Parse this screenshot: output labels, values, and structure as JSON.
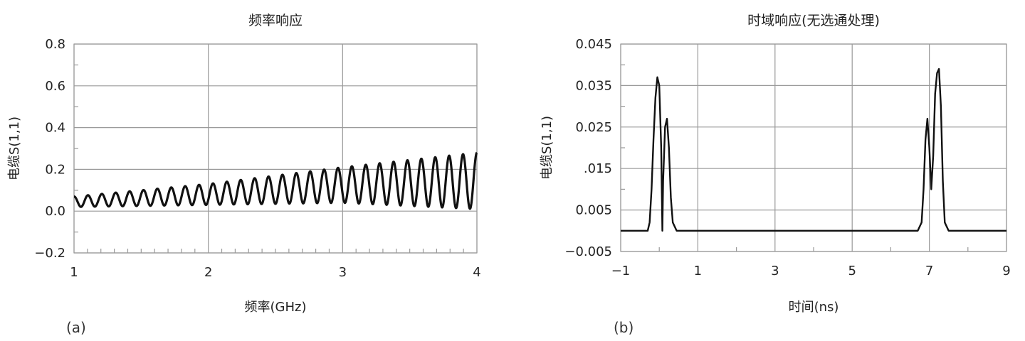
{
  "chart_data": [
    {
      "type": "line",
      "panel_label": "(a)",
      "title": "频率响应",
      "xlabel": "频率(GHz)",
      "ylabel": "电缆S(1,1)",
      "xlim": [
        1,
        4
      ],
      "ylim": [
        -0.2,
        0.8
      ],
      "xticks": [
        1,
        2,
        3,
        4
      ],
      "xtick_labels": [
        "1",
        "2",
        "3",
        "4"
      ],
      "yticks": [
        -0.2,
        0.0,
        0.2,
        0.4,
        0.6,
        0.8
      ],
      "ytick_labels": [
        "−0.2",
        "0.0",
        "0.2",
        "0.4",
        "0.6",
        "0.8"
      ],
      "minor_ticks_x": 10,
      "minor_ticks_y": 2,
      "grid": true,
      "series": [
        {
          "style": "rippled",
          "x_start": 1.0,
          "x_end": 4.0,
          "ripple_count": 29,
          "upper_envelope": [
            [
              1.0,
              0.07
            ],
            [
              2.0,
              0.13
            ],
            [
              3.0,
              0.21
            ],
            [
              4.0,
              0.28
            ]
          ],
          "lower_envelope": [
            [
              1.0,
              0.02
            ],
            [
              2.0,
              0.03
            ],
            [
              3.0,
              0.04
            ],
            [
              4.0,
              0.01
            ]
          ]
        }
      ]
    },
    {
      "type": "line",
      "panel_label": "(b)",
      "title": "时域响应(无选通处理)",
      "xlabel": "时间(ns)",
      "ylabel": "电缆S(1,1)",
      "xlim": [
        -1,
        9
      ],
      "ylim": [
        -0.005,
        0.045
      ],
      "xticks": [
        -1,
        1,
        3,
        5,
        7,
        9
      ],
      "xtick_labels": [
        "−1",
        "1",
        "3",
        "5",
        "7",
        "9"
      ],
      "yticks": [
        -0.005,
        0.005,
        0.015,
        0.025,
        0.035,
        0.045
      ],
      "ytick_labels": [
        "−0.005",
        "0.005",
        ".015",
        "0.025",
        "0.035",
        "0.045"
      ],
      "minor_ticks_x": 2,
      "minor_ticks_y": 2,
      "grid": true,
      "series": [
        {
          "points": [
            [
              -1.0,
              0.0
            ],
            [
              -0.3,
              0.0
            ],
            [
              -0.25,
              0.002
            ],
            [
              -0.2,
              0.01
            ],
            [
              -0.15,
              0.022
            ],
            [
              -0.1,
              0.032
            ],
            [
              -0.05,
              0.037
            ],
            [
              0.0,
              0.035
            ],
            [
              0.05,
              0.02
            ],
            [
              0.08,
              0.0
            ],
            [
              0.1,
              0.012
            ],
            [
              0.15,
              0.025
            ],
            [
              0.2,
              0.027
            ],
            [
              0.25,
              0.02
            ],
            [
              0.3,
              0.008
            ],
            [
              0.35,
              0.002
            ],
            [
              0.45,
              0.0
            ],
            [
              6.7,
              0.0
            ],
            [
              6.8,
              0.002
            ],
            [
              6.85,
              0.01
            ],
            [
              6.9,
              0.022
            ],
            [
              6.95,
              0.027
            ],
            [
              7.0,
              0.02
            ],
            [
              7.05,
              0.01
            ],
            [
              7.1,
              0.018
            ],
            [
              7.15,
              0.033
            ],
            [
              7.2,
              0.038
            ],
            [
              7.25,
              0.039
            ],
            [
              7.3,
              0.03
            ],
            [
              7.35,
              0.012
            ],
            [
              7.4,
              0.002
            ],
            [
              7.5,
              0.0
            ],
            [
              9.0,
              0.0
            ]
          ]
        }
      ]
    }
  ]
}
